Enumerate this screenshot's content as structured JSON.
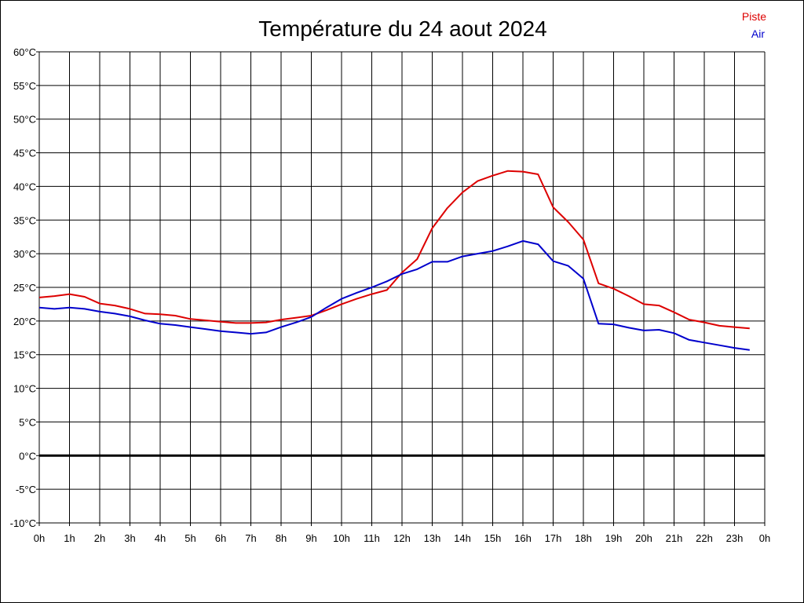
{
  "chart_data": {
    "type": "line",
    "title": "Température du 24 aout 2024",
    "xlabel": "",
    "ylabel": "",
    "x_ticks": [
      "0h",
      "1h",
      "2h",
      "3h",
      "4h",
      "5h",
      "6h",
      "7h",
      "8h",
      "9h",
      "10h",
      "11h",
      "12h",
      "13h",
      "14h",
      "15h",
      "16h",
      "17h",
      "18h",
      "19h",
      "20h",
      "21h",
      "22h",
      "23h",
      "0h"
    ],
    "y_ticks": [
      "-10°C",
      "-5°C",
      "0°C",
      "5°C",
      "10°C",
      "15°C",
      "20°C",
      "25°C",
      "30°C",
      "35°C",
      "40°C",
      "45°C",
      "50°C",
      "55°C",
      "60°C"
    ],
    "xlim": [
      0,
      24
    ],
    "ylim": [
      -10,
      60
    ],
    "grid": true,
    "legend_position": "top-right",
    "reference_line_y": 0,
    "x": [
      0,
      0.5,
      1,
      1.5,
      2,
      2.5,
      3,
      3.5,
      4,
      4.5,
      5,
      5.5,
      6,
      6.5,
      7,
      7.5,
      8,
      8.5,
      9,
      9.5,
      10,
      10.5,
      11,
      11.5,
      12,
      12.5,
      13,
      13.5,
      14,
      14.5,
      15,
      15.5,
      16,
      16.5,
      17,
      17.5,
      18,
      18.5,
      19,
      19.5,
      20,
      20.5,
      21,
      21.5,
      22,
      22.5,
      23,
      23.5
    ],
    "series": [
      {
        "name": "Piste",
        "color": "#dd0000",
        "values": [
          23.5,
          23.7,
          24.0,
          23.6,
          22.6,
          22.3,
          21.8,
          21.1,
          21.0,
          20.8,
          20.3,
          20.1,
          19.9,
          19.7,
          19.7,
          19.8,
          20.2,
          20.5,
          20.8,
          21.6,
          22.5,
          23.3,
          24.0,
          24.6,
          27.2,
          29.2,
          33.8,
          36.8,
          39.1,
          40.8,
          41.6,
          42.3,
          42.2,
          41.8,
          36.9,
          34.7,
          32.1,
          25.6,
          24.8,
          23.7,
          22.5,
          22.3,
          21.3,
          20.2,
          19.8,
          19.3,
          19.1,
          18.9
        ]
      },
      {
        "name": "Air",
        "color": "#0000cc",
        "values": [
          22.0,
          21.8,
          22.0,
          21.8,
          21.4,
          21.1,
          20.7,
          20.1,
          19.6,
          19.4,
          19.1,
          18.8,
          18.5,
          18.3,
          18.1,
          18.3,
          19.1,
          19.8,
          20.6,
          22.0,
          23.3,
          24.2,
          25.0,
          25.9,
          27.0,
          27.7,
          28.8,
          28.8,
          29.6,
          30.0,
          30.4,
          31.1,
          31.9,
          31.4,
          28.9,
          28.2,
          26.3,
          19.6,
          19.5,
          19.0,
          18.6,
          18.7,
          18.2,
          17.2,
          16.8,
          16.4,
          16.0,
          15.7
        ]
      }
    ]
  }
}
